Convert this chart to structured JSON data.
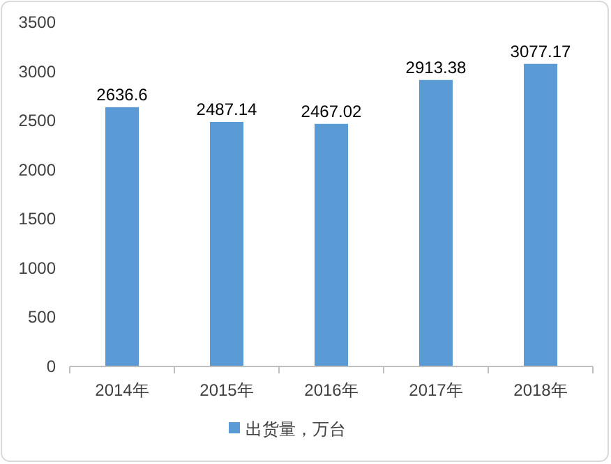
{
  "chart_data": {
    "type": "bar",
    "categories": [
      "2014年",
      "2015年",
      "2016年",
      "2017年",
      "2018年"
    ],
    "series": [
      {
        "name": "出货量，万台",
        "color": "#5b9bd5",
        "values": [
          2636.6,
          2487.14,
          2467.02,
          2913.38,
          3077.17
        ]
      }
    ],
    "ylim": [
      0,
      3500
    ],
    "yticks": [
      0,
      500,
      1000,
      1500,
      2000,
      2500,
      3000,
      3500
    ],
    "data_labels": true,
    "legend": "bottom",
    "grid": false
  }
}
